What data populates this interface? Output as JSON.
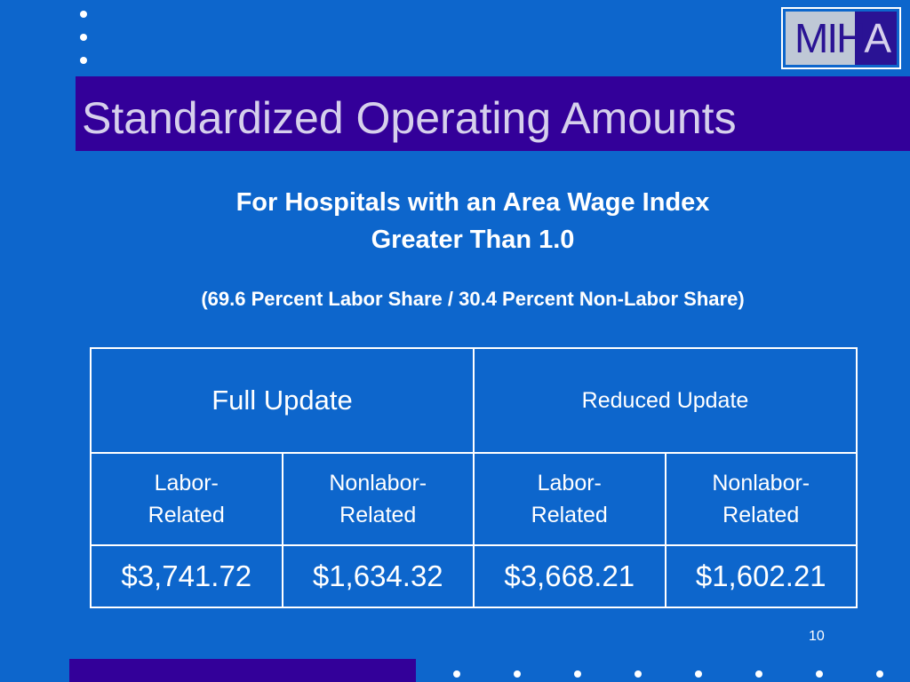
{
  "slide": {
    "logo_text": {
      "part1": "MI",
      "part2": "H",
      "part3": "A"
    },
    "title": "Standardized Operating Amounts",
    "subtitle_line1": "For Hospitals with an Area Wage Index",
    "subtitle_line2": "Greater Than 1.0",
    "share_note": "(69.6 Percent Labor Share / 30.4 Percent Non-Labor Share)",
    "table": {
      "groups": [
        "Full Update",
        "Reduced Update"
      ],
      "subheaders": [
        [
          "Labor-",
          "Related"
        ],
        [
          "Nonlabor-",
          "Related"
        ],
        [
          "Labor-",
          "Related"
        ],
        [
          "Nonlabor-",
          "Related"
        ]
      ],
      "values": [
        "$3,741.72",
        "$1,634.32",
        "$3,668.21",
        "$1,602.21"
      ]
    },
    "page_number": "10"
  },
  "colors": {
    "background": "#0d66cc",
    "accent_bar": "#330099",
    "title_text": "#d6d0ec",
    "text": "#ffffff"
  }
}
